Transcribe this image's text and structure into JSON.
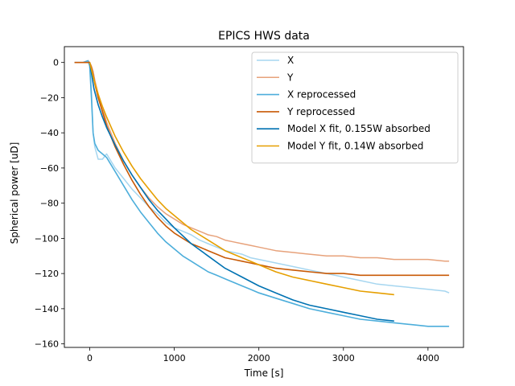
{
  "chart_data": {
    "type": "line",
    "title": "EPICS HWS data",
    "xlabel": "Time [s]",
    "ylabel": "Spherical power [uD]",
    "xlim": [
      -300,
      4420
    ],
    "ylim": [
      -162,
      9
    ],
    "xticks": [
      0,
      1000,
      2000,
      3000,
      4000
    ],
    "yticks": [
      0,
      -20,
      -40,
      -60,
      -80,
      -100,
      -120,
      -140,
      -160
    ],
    "grid": false,
    "legend_position": "top-right",
    "series": [
      {
        "name": "X",
        "color": "#a6d6f0",
        "x": [
          -180,
          -80,
          -20,
          0,
          20,
          40,
          60,
          100,
          150,
          200,
          300,
          400,
          500,
          600,
          700,
          800,
          900,
          1000,
          1100,
          1200,
          1300,
          1400,
          1500,
          1600,
          1700,
          1800,
          1900,
          2000,
          2200,
          2400,
          2600,
          2800,
          3000,
          3200,
          3400,
          3600,
          3800,
          4000,
          4200,
          4250
        ],
        "y": [
          0,
          0,
          1,
          -2,
          -15,
          -40,
          -48,
          -55,
          -55,
          -52,
          -60,
          -66,
          -72,
          -77,
          -82,
          -86,
          -91,
          -94,
          -96,
          -98,
          -101,
          -103,
          -105,
          -107,
          -108,
          -109,
          -111,
          -112,
          -114,
          -116,
          -118,
          -120,
          -122,
          -124,
          -126,
          -127,
          -128,
          -129,
          -130,
          -131
        ]
      },
      {
        "name": "Y",
        "color": "#e7a27b",
        "x": [
          -180,
          -80,
          -20,
          0,
          20,
          40,
          60,
          100,
          150,
          200,
          300,
          400,
          500,
          600,
          700,
          800,
          900,
          1000,
          1100,
          1200,
          1300,
          1400,
          1500,
          1600,
          1700,
          1800,
          1900,
          2000,
          2200,
          2400,
          2600,
          2800,
          3000,
          3200,
          3400,
          3600,
          3800,
          4000,
          4200,
          4250
        ],
        "y": [
          0,
          0,
          1,
          0,
          -2,
          -5,
          -10,
          -18,
          -26,
          -34,
          -46,
          -56,
          -64,
          -71,
          -77,
          -82,
          -86,
          -89,
          -92,
          -94,
          -96,
          -98,
          -99,
          -101,
          -102,
          -103,
          -104,
          -105,
          -107,
          -108,
          -109,
          -110,
          -110,
          -111,
          -111,
          -112,
          -112,
          -112,
          -113,
          -113
        ]
      },
      {
        "name": "X reprocessed",
        "color": "#4daedb",
        "x": [
          -180,
          -80,
          -20,
          0,
          20,
          40,
          60,
          100,
          150,
          200,
          300,
          400,
          500,
          600,
          700,
          800,
          900,
          1000,
          1100,
          1200,
          1300,
          1400,
          1500,
          1600,
          1700,
          1800,
          1900,
          2000,
          2200,
          2400,
          2600,
          2800,
          3000,
          3200,
          3400,
          3600,
          3800,
          4000,
          4200,
          4250
        ],
        "y": [
          0,
          0,
          1,
          -2,
          -20,
          -40,
          -46,
          -50,
          -52,
          -54,
          -62,
          -70,
          -78,
          -85,
          -91,
          -97,
          -102,
          -106,
          -110,
          -113,
          -116,
          -119,
          -121,
          -123,
          -125,
          -127,
          -129,
          -131,
          -134,
          -137,
          -140,
          -142,
          -144,
          -146,
          -147,
          -148,
          -149,
          -150,
          -150,
          -150
        ]
      },
      {
        "name": "Y reprocessed",
        "color": "#c85a06",
        "x": [
          -180,
          -80,
          -20,
          0,
          20,
          40,
          60,
          100,
          150,
          200,
          300,
          400,
          500,
          600,
          700,
          800,
          900,
          1000,
          1100,
          1200,
          1300,
          1400,
          1500,
          1600,
          1700,
          1800,
          1900,
          2000,
          2200,
          2400,
          2600,
          2800,
          3000,
          3200,
          3400,
          3600,
          3800,
          4000,
          4200,
          4250
        ],
        "y": [
          0,
          0,
          0,
          0,
          -3,
          -7,
          -12,
          -20,
          -28,
          -36,
          -48,
          -58,
          -67,
          -75,
          -82,
          -88,
          -93,
          -97,
          -100,
          -103,
          -105,
          -107,
          -109,
          -111,
          -112,
          -113,
          -114,
          -115,
          -117,
          -118,
          -119,
          -120,
          -120,
          -121,
          -121,
          -121,
          -121,
          -121,
          -121,
          -121
        ]
      },
      {
        "name": "Model X fit, 0.155W absorbed",
        "color": "#0072b2",
        "x": [
          0,
          50,
          100,
          150,
          200,
          300,
          400,
          500,
          600,
          700,
          800,
          900,
          1000,
          1200,
          1400,
          1600,
          1800,
          2000,
          2200,
          2400,
          2600,
          2800,
          3000,
          3200,
          3400,
          3600
        ],
        "y": [
          0,
          -15,
          -24,
          -31,
          -37,
          -47,
          -56,
          -64,
          -71,
          -78,
          -84,
          -89,
          -94,
          -103,
          -110,
          -117,
          -122,
          -127,
          -131,
          -135,
          -138,
          -140,
          -142,
          -144,
          -146,
          -147
        ]
      },
      {
        "name": "Model Y fit, 0.14W absorbed",
        "color": "#e69f00",
        "x": [
          0,
          50,
          100,
          150,
          200,
          300,
          400,
          500,
          600,
          700,
          800,
          900,
          1000,
          1200,
          1400,
          1600,
          1800,
          2000,
          2200,
          2400,
          2600,
          2800,
          3000,
          3200,
          3400,
          3600
        ],
        "y": [
          0,
          -10,
          -18,
          -25,
          -31,
          -42,
          -51,
          -59,
          -66,
          -72,
          -78,
          -83,
          -87,
          -95,
          -101,
          -107,
          -111,
          -115,
          -119,
          -122,
          -124,
          -126,
          -128,
          -130,
          -131,
          -132
        ]
      }
    ]
  }
}
